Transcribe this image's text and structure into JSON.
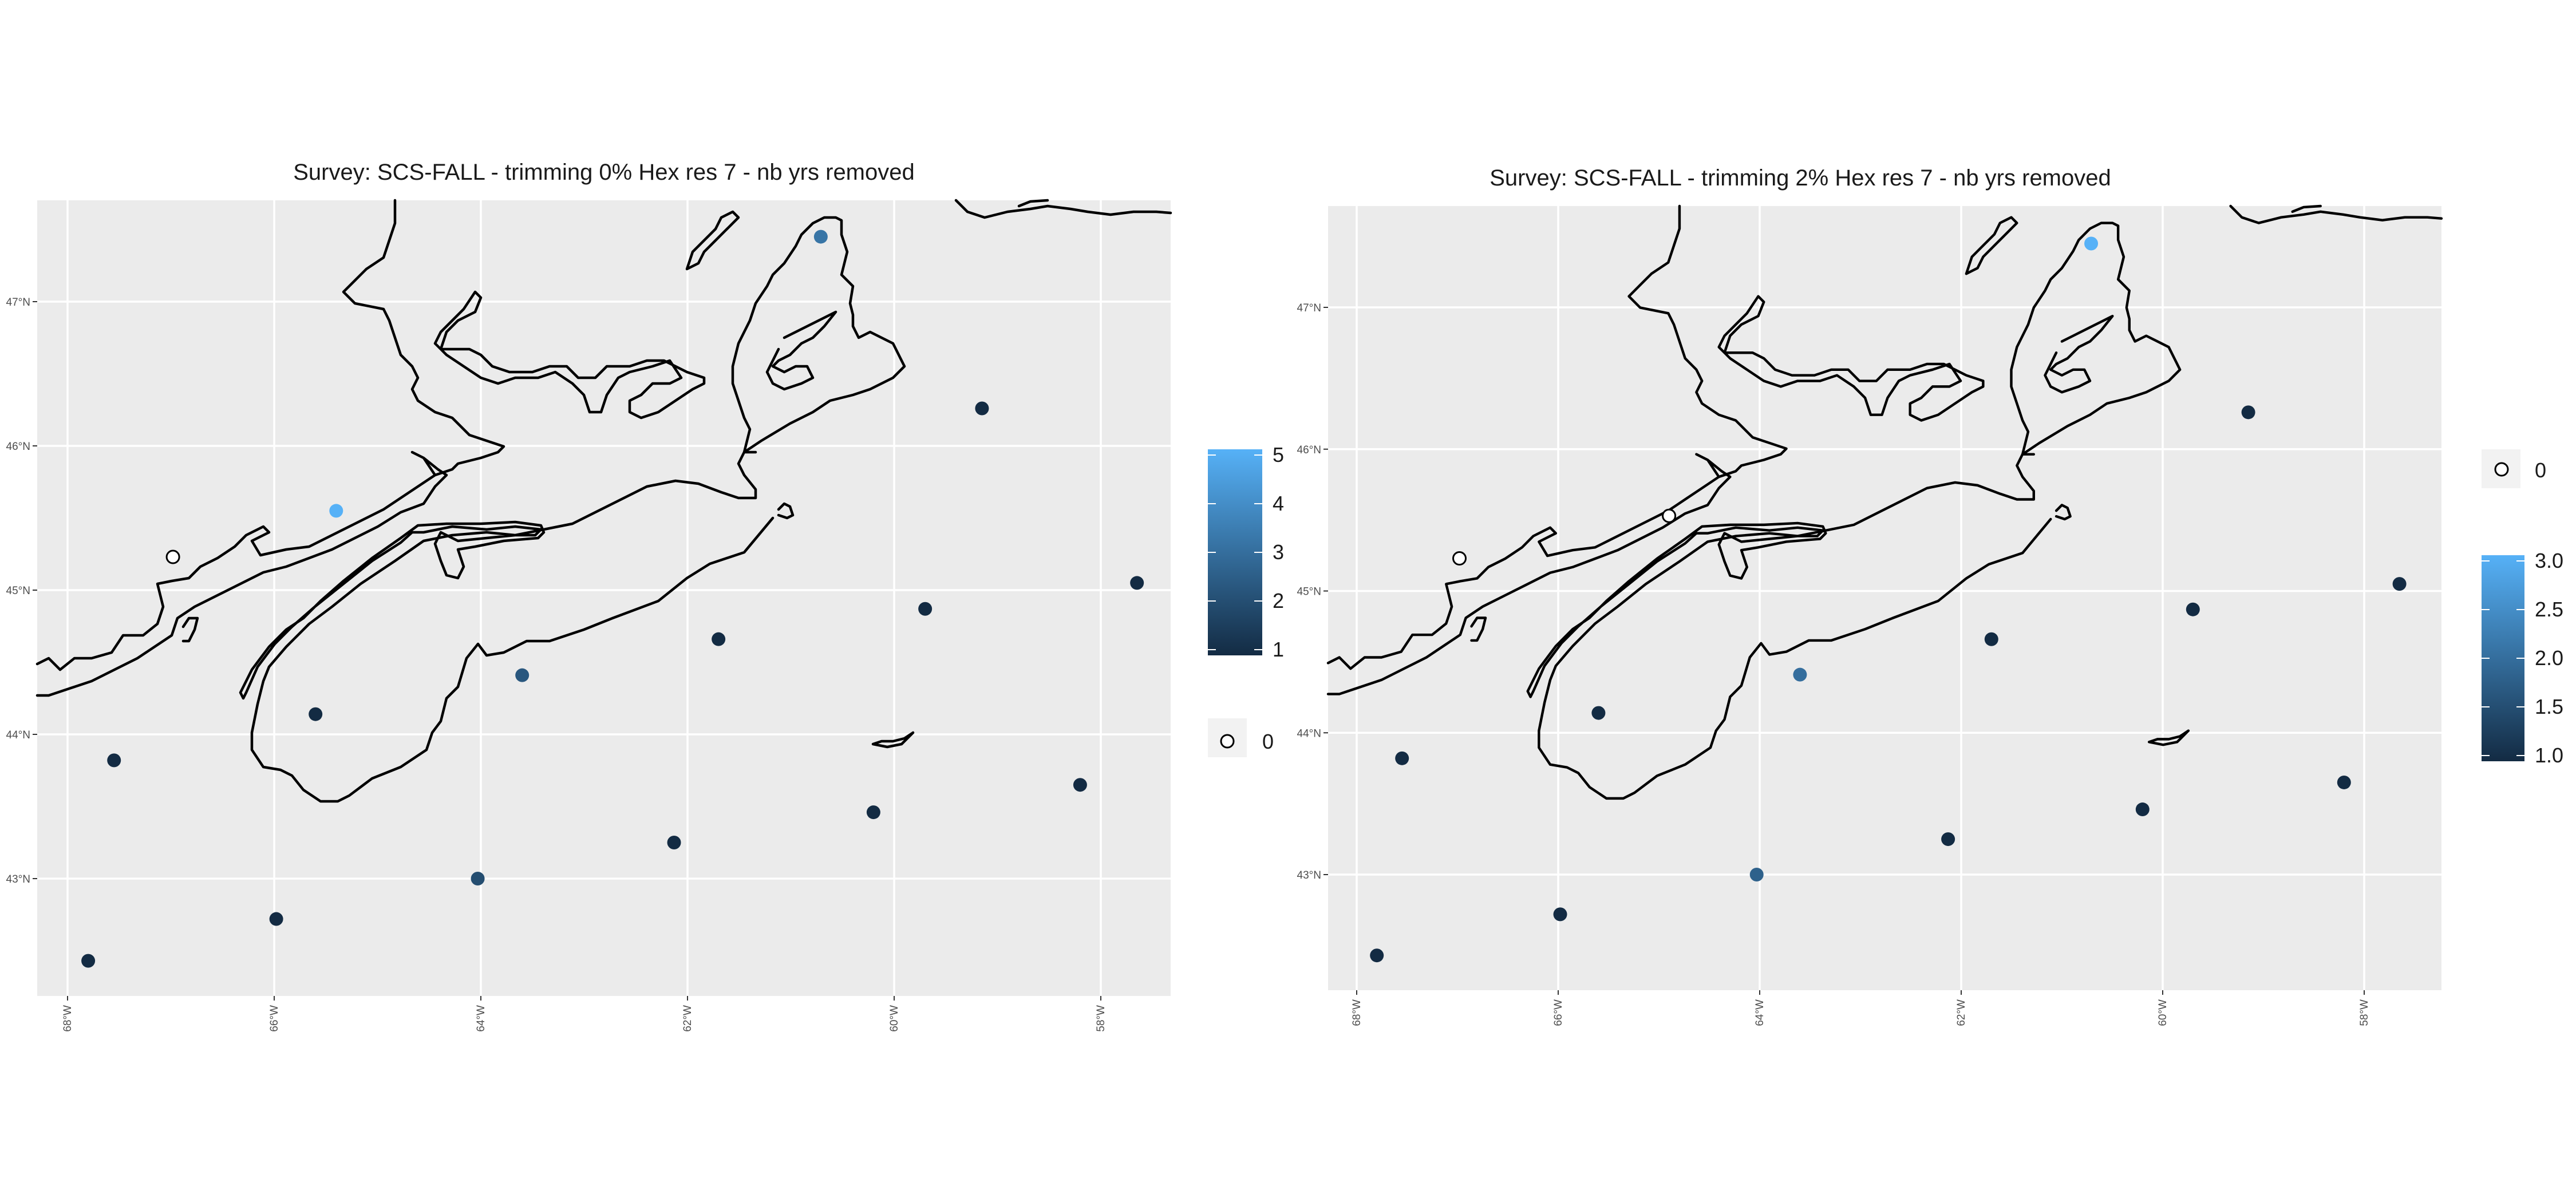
{
  "colors": {
    "low": "#132B43",
    "high": "#56B1F7",
    "zero_fill": "#ffffff",
    "point_outline": "#000000"
  },
  "panels": [
    {
      "title": "Survey: SCS-FALL - trimming 0% Hex res 7 - nb yrs removed",
      "lon_ticks": [
        "68°W",
        "66°W",
        "64°W",
        "62°W",
        "60°W",
        "58°W"
      ],
      "lat_ticks": [
        "47°N",
        "46°N",
        "45°N",
        "44°N",
        "43°N"
      ],
      "legend": {
        "colorbar_labels": [
          "5",
          "4",
          "3",
          "2",
          "1"
        ],
        "min": 1,
        "max": 5,
        "zero_label": "0"
      },
      "points": [
        {
          "lon": -60.71,
          "lat": 47.45,
          "value": 3.2
        },
        {
          "lon": -59.15,
          "lat": 46.26,
          "value": 1
        },
        {
          "lon": -65.4,
          "lat": 45.55,
          "value": 5
        },
        {
          "lon": -66.98,
          "lat": 45.23,
          "value": 0
        },
        {
          "lon": -57.65,
          "lat": 45.05,
          "value": 1
        },
        {
          "lon": -59.7,
          "lat": 44.87,
          "value": 1
        },
        {
          "lon": -61.7,
          "lat": 44.66,
          "value": 1
        },
        {
          "lon": -63.6,
          "lat": 44.41,
          "value": 2.3
        },
        {
          "lon": -65.6,
          "lat": 44.14,
          "value": 1
        },
        {
          "lon": -67.55,
          "lat": 43.82,
          "value": 1
        },
        {
          "lon": -58.2,
          "lat": 43.65,
          "value": 1
        },
        {
          "lon": -60.2,
          "lat": 43.46,
          "value": 1
        },
        {
          "lon": -62.13,
          "lat": 43.25,
          "value": 1
        },
        {
          "lon": -64.03,
          "lat": 43.0,
          "value": 2
        },
        {
          "lon": -65.98,
          "lat": 42.72,
          "value": 1
        },
        {
          "lon": -67.8,
          "lat": 42.43,
          "value": 1
        }
      ]
    },
    {
      "title": "Survey: SCS-FALL - trimming 2% Hex res 7 - nb yrs removed",
      "lon_ticks": [
        "68°W",
        "66°W",
        "64°W",
        "62°W",
        "60°W",
        "58°W"
      ],
      "lat_ticks": [
        "47°N",
        "46°N",
        "45°N",
        "44°N",
        "43°N"
      ],
      "legend": {
        "colorbar_labels": [
          "3.0",
          "2.5",
          "2.0",
          "1.5",
          "1.0"
        ],
        "min": 1,
        "max": 3,
        "zero_label": "0"
      },
      "points": [
        {
          "lon": -60.71,
          "lat": 47.45,
          "value": 3
        },
        {
          "lon": -59.15,
          "lat": 46.26,
          "value": 1
        },
        {
          "lon": -64.9,
          "lat": 45.53,
          "value": 0
        },
        {
          "lon": -66.98,
          "lat": 45.23,
          "value": 0
        },
        {
          "lon": -57.65,
          "lat": 45.05,
          "value": 1
        },
        {
          "lon": -59.7,
          "lat": 44.87,
          "value": 1
        },
        {
          "lon": -61.7,
          "lat": 44.66,
          "value": 1
        },
        {
          "lon": -63.6,
          "lat": 44.41,
          "value": 2
        },
        {
          "lon": -65.6,
          "lat": 44.14,
          "value": 1
        },
        {
          "lon": -67.55,
          "lat": 43.82,
          "value": 1
        },
        {
          "lon": -58.2,
          "lat": 43.65,
          "value": 1
        },
        {
          "lon": -60.2,
          "lat": 43.46,
          "value": 1
        },
        {
          "lon": -62.13,
          "lat": 43.25,
          "value": 1
        },
        {
          "lon": -64.03,
          "lat": 43.0,
          "value": 1.8
        },
        {
          "lon": -65.98,
          "lat": 42.72,
          "value": 1
        },
        {
          "lon": -67.8,
          "lat": 42.43,
          "value": 1
        }
      ]
    }
  ]
}
